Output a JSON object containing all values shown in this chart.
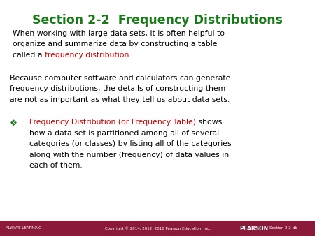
{
  "title": "Section 2-2  Frequency Distributions",
  "title_color": "#1a7a1a",
  "bg_color": "#ffffff",
  "footer_bg_color": "#8b1a3a",
  "footer_text_left": "ALWAYS LEARNING",
  "footer_text_center": "Copyright © 2014, 2012, 2010 Pearson Education, Inc.",
  "footer_text_color": "#ffffff",
  "red_color": "#cc0000",
  "black_color": "#000000",
  "green_color": "#1a7a1a",
  "text_fontsize": 7.8,
  "title_fontsize": 12.5,
  "footer_fontsize": 4.0,
  "pearson_fontsize": 5.5
}
